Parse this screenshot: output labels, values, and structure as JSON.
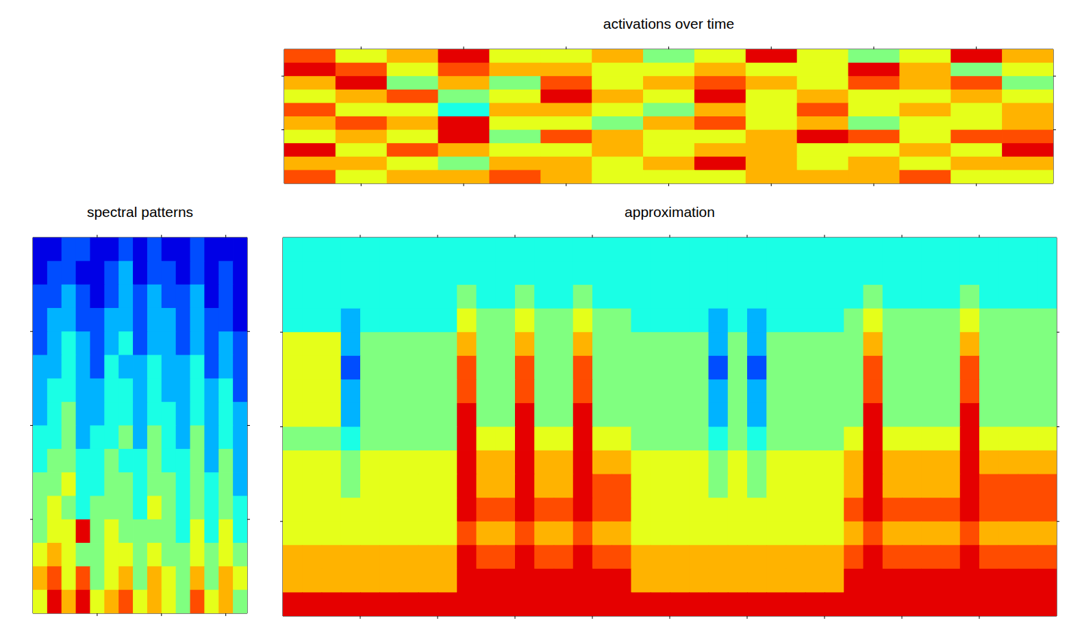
{
  "chart_data": [
    {
      "type": "heatmap",
      "title": "activations over time",
      "xlim": [
        0,
        15
      ],
      "xticks": [
        1.5,
        3.5,
        5.5,
        7.5,
        9.5,
        11.5,
        13.5
      ],
      "ylim": [
        0,
        10
      ],
      "yticks": [
        4,
        8
      ],
      "tick_labels": false,
      "color": "jet",
      "color_range": [
        0,
        10
      ],
      "cells": [
        [
          8,
          6,
          7,
          9,
          6,
          6,
          7,
          5,
          6,
          9,
          6,
          5,
          6,
          9,
          7
        ],
        [
          9,
          8,
          6,
          8,
          7,
          7,
          6,
          6,
          7,
          6,
          6,
          9,
          7,
          5,
          6
        ],
        [
          7,
          9,
          5,
          7,
          5,
          8,
          6,
          7,
          8,
          7,
          6,
          8,
          7,
          8,
          5
        ],
        [
          6,
          7,
          8,
          5,
          6,
          9,
          7,
          6,
          9,
          6,
          7,
          6,
          6,
          7,
          6
        ],
        [
          8,
          6,
          6,
          4,
          7,
          7,
          6,
          5,
          7,
          6,
          8,
          6,
          7,
          6,
          7
        ],
        [
          7,
          8,
          7,
          9,
          6,
          6,
          5,
          7,
          8,
          6,
          7,
          5,
          6,
          6,
          7
        ],
        [
          6,
          7,
          6,
          9,
          5,
          8,
          7,
          6,
          6,
          7,
          9,
          8,
          6,
          8,
          8
        ],
        [
          9,
          6,
          8,
          7,
          6,
          6,
          7,
          6,
          7,
          7,
          6,
          6,
          7,
          6,
          9
        ],
        [
          7,
          7,
          6,
          5,
          7,
          7,
          6,
          7,
          9,
          7,
          6,
          7,
          6,
          7,
          7
        ],
        [
          8,
          6,
          7,
          7,
          8,
          7,
          6,
          6,
          6,
          7,
          7,
          7,
          8,
          6,
          6
        ]
      ]
    },
    {
      "type": "heatmap",
      "title": "spectral patterns",
      "xlim": [
        0,
        15
      ],
      "xticks": [
        4.5,
        9,
        13.5
      ],
      "ylim": [
        0,
        16
      ],
      "yticks": [
        4,
        8,
        12
      ],
      "tick_labels": false,
      "color": "jet",
      "color_range": [
        0,
        10
      ],
      "cells": [
        [
          1,
          1,
          2,
          2,
          1,
          1,
          2,
          1,
          2,
          1,
          1,
          2,
          1,
          1,
          1
        ],
        [
          1,
          2,
          2,
          1,
          1,
          2,
          3,
          1,
          2,
          2,
          1,
          2,
          1,
          2,
          1
        ],
        [
          2,
          2,
          3,
          2,
          1,
          2,
          3,
          2,
          3,
          2,
          2,
          3,
          1,
          2,
          1
        ],
        [
          2,
          3,
          3,
          2,
          2,
          3,
          3,
          2,
          3,
          3,
          2,
          3,
          2,
          2,
          1
        ],
        [
          2,
          3,
          4,
          3,
          2,
          3,
          4,
          2,
          3,
          3,
          2,
          3,
          2,
          3,
          2
        ],
        [
          3,
          3,
          4,
          3,
          2,
          4,
          3,
          3,
          4,
          3,
          3,
          4,
          2,
          3,
          2
        ],
        [
          3,
          4,
          4,
          3,
          3,
          4,
          4,
          3,
          4,
          3,
          3,
          4,
          3,
          4,
          2
        ],
        [
          3,
          4,
          5,
          3,
          3,
          4,
          4,
          3,
          4,
          4,
          3,
          4,
          3,
          4,
          3
        ],
        [
          4,
          4,
          5,
          3,
          4,
          4,
          5,
          3,
          5,
          4,
          3,
          5,
          3,
          4,
          3
        ],
        [
          4,
          5,
          5,
          4,
          4,
          5,
          4,
          4,
          5,
          4,
          4,
          5,
          3,
          5,
          3
        ],
        [
          5,
          5,
          6,
          4,
          4,
          5,
          5,
          4,
          5,
          5,
          4,
          5,
          4,
          5,
          3
        ],
        [
          5,
          6,
          5,
          4,
          5,
          5,
          5,
          4,
          6,
          5,
          4,
          5,
          4,
          5,
          4
        ],
        [
          5,
          6,
          6,
          9,
          5,
          6,
          5,
          5,
          5,
          5,
          4,
          6,
          4,
          6,
          4
        ],
        [
          6,
          7,
          6,
          5,
          5,
          6,
          6,
          5,
          6,
          5,
          5,
          6,
          5,
          6,
          5
        ],
        [
          7,
          8,
          6,
          8,
          5,
          6,
          7,
          5,
          7,
          6,
          5,
          7,
          5,
          7,
          6
        ],
        [
          6,
          9,
          7,
          9,
          6,
          7,
          8,
          6,
          7,
          6,
          5,
          8,
          6,
          7,
          5
        ]
      ]
    },
    {
      "type": "heatmap",
      "title": "approximation",
      "xlim": [
        0,
        40
      ],
      "xticks": [
        4,
        8,
        12,
        16,
        20,
        24,
        28,
        32,
        36
      ],
      "ylim": [
        0,
        16
      ],
      "yticks": [
        4,
        8,
        12
      ],
      "tick_labels": false,
      "color": "jet",
      "color_range": [
        0,
        10
      ],
      "cells": [
        [
          4,
          4,
          4,
          4,
          4,
          4,
          4,
          4,
          4,
          4,
          4,
          4,
          4,
          4,
          4,
          4,
          4,
          4,
          4,
          4,
          4,
          4,
          4,
          4,
          4,
          4,
          4,
          4,
          4,
          4,
          4,
          4,
          4,
          4,
          4,
          4,
          4,
          4,
          4,
          4
        ],
        [
          4,
          4,
          4,
          4,
          4,
          4,
          4,
          4,
          4,
          4,
          4,
          4,
          4,
          4,
          4,
          4,
          4,
          4,
          4,
          4,
          4,
          4,
          4,
          4,
          4,
          4,
          4,
          4,
          4,
          4,
          4,
          4,
          4,
          4,
          4,
          4,
          4,
          4,
          4,
          4
        ],
        [
          4,
          4,
          4,
          4,
          4,
          4,
          4,
          4,
          4,
          5,
          4,
          4,
          5,
          4,
          4,
          5,
          4,
          4,
          4,
          4,
          4,
          4,
          4,
          4,
          4,
          4,
          4,
          4,
          4,
          4,
          5,
          4,
          4,
          4,
          4,
          5,
          4,
          4,
          4,
          4
        ],
        [
          4,
          4,
          4,
          3,
          4,
          4,
          4,
          4,
          4,
          6,
          5,
          5,
          6,
          5,
          5,
          6,
          5,
          5,
          4,
          4,
          4,
          4,
          3,
          4,
          3,
          4,
          4,
          4,
          4,
          5,
          6,
          5,
          5,
          5,
          5,
          6,
          5,
          5,
          5,
          5
        ],
        [
          6,
          6,
          6,
          3,
          5,
          5,
          5,
          5,
          5,
          7,
          5,
          5,
          7,
          5,
          5,
          7,
          5,
          5,
          5,
          5,
          5,
          5,
          3,
          5,
          3,
          5,
          5,
          5,
          5,
          5,
          7,
          5,
          5,
          5,
          5,
          7,
          5,
          5,
          5,
          5
        ],
        [
          6,
          6,
          6,
          2,
          5,
          5,
          5,
          5,
          5,
          8,
          5,
          5,
          8,
          5,
          5,
          8,
          5,
          5,
          5,
          5,
          5,
          5,
          2,
          5,
          2,
          5,
          5,
          5,
          5,
          5,
          8,
          5,
          5,
          5,
          5,
          8,
          5,
          5,
          5,
          5
        ],
        [
          6,
          6,
          6,
          3,
          5,
          5,
          5,
          5,
          5,
          8,
          5,
          5,
          8,
          5,
          5,
          8,
          5,
          5,
          5,
          5,
          5,
          5,
          3,
          5,
          3,
          5,
          5,
          5,
          5,
          5,
          8,
          5,
          5,
          5,
          5,
          8,
          5,
          5,
          5,
          5
        ],
        [
          6,
          6,
          6,
          3,
          5,
          5,
          5,
          5,
          5,
          9,
          5,
          5,
          9,
          5,
          5,
          9,
          5,
          5,
          5,
          5,
          5,
          5,
          3,
          5,
          3,
          5,
          5,
          5,
          5,
          5,
          9,
          5,
          5,
          5,
          5,
          9,
          5,
          5,
          5,
          5
        ],
        [
          5,
          5,
          5,
          4,
          5,
          5,
          5,
          5,
          5,
          9,
          6,
          6,
          9,
          6,
          6,
          9,
          6,
          6,
          5,
          5,
          5,
          5,
          4,
          5,
          4,
          5,
          5,
          5,
          5,
          6,
          9,
          6,
          6,
          6,
          6,
          9,
          6,
          6,
          6,
          6
        ],
        [
          6,
          6,
          6,
          5,
          6,
          6,
          6,
          6,
          6,
          9,
          7,
          7,
          9,
          7,
          7,
          9,
          7,
          7,
          6,
          6,
          6,
          6,
          5,
          6,
          5,
          6,
          6,
          6,
          6,
          7,
          9,
          7,
          7,
          7,
          7,
          9,
          7,
          7,
          7,
          7
        ],
        [
          6,
          6,
          6,
          5,
          6,
          6,
          6,
          6,
          6,
          9,
          7,
          7,
          9,
          7,
          7,
          9,
          8,
          8,
          6,
          6,
          6,
          6,
          5,
          6,
          5,
          6,
          6,
          6,
          6,
          7,
          9,
          7,
          7,
          7,
          7,
          9,
          8,
          8,
          8,
          8
        ],
        [
          6,
          6,
          6,
          6,
          6,
          6,
          6,
          6,
          6,
          9,
          8,
          8,
          9,
          8,
          8,
          9,
          8,
          8,
          6,
          6,
          6,
          6,
          6,
          6,
          6,
          6,
          6,
          6,
          6,
          8,
          9,
          8,
          8,
          8,
          8,
          9,
          8,
          8,
          8,
          8
        ],
        [
          6,
          6,
          6,
          6,
          6,
          6,
          6,
          6,
          6,
          8,
          7,
          7,
          8,
          7,
          7,
          8,
          7,
          7,
          6,
          6,
          6,
          6,
          6,
          6,
          6,
          6,
          6,
          6,
          6,
          7,
          8,
          7,
          7,
          7,
          7,
          8,
          7,
          7,
          7,
          7
        ],
        [
          7,
          7,
          7,
          7,
          7,
          7,
          7,
          7,
          7,
          9,
          8,
          8,
          9,
          8,
          8,
          9,
          8,
          8,
          7,
          7,
          7,
          7,
          7,
          7,
          7,
          7,
          7,
          7,
          7,
          8,
          9,
          8,
          8,
          8,
          8,
          9,
          8,
          8,
          8,
          8
        ],
        [
          7,
          7,
          7,
          7,
          7,
          7,
          7,
          7,
          7,
          9,
          9,
          9,
          9,
          9,
          9,
          9,
          9,
          9,
          7,
          7,
          7,
          7,
          7,
          7,
          7,
          7,
          7,
          7,
          7,
          9,
          9,
          9,
          9,
          9,
          9,
          9,
          9,
          9,
          9,
          9
        ],
        [
          9,
          9,
          9,
          9,
          9,
          9,
          9,
          9,
          9,
          9,
          9,
          9,
          9,
          9,
          9,
          9,
          9,
          9,
          9,
          9,
          9,
          9,
          9,
          9,
          9,
          9,
          9,
          9,
          9,
          9,
          9,
          9,
          9,
          9,
          9,
          9,
          9,
          9,
          9,
          9
        ]
      ]
    }
  ]
}
